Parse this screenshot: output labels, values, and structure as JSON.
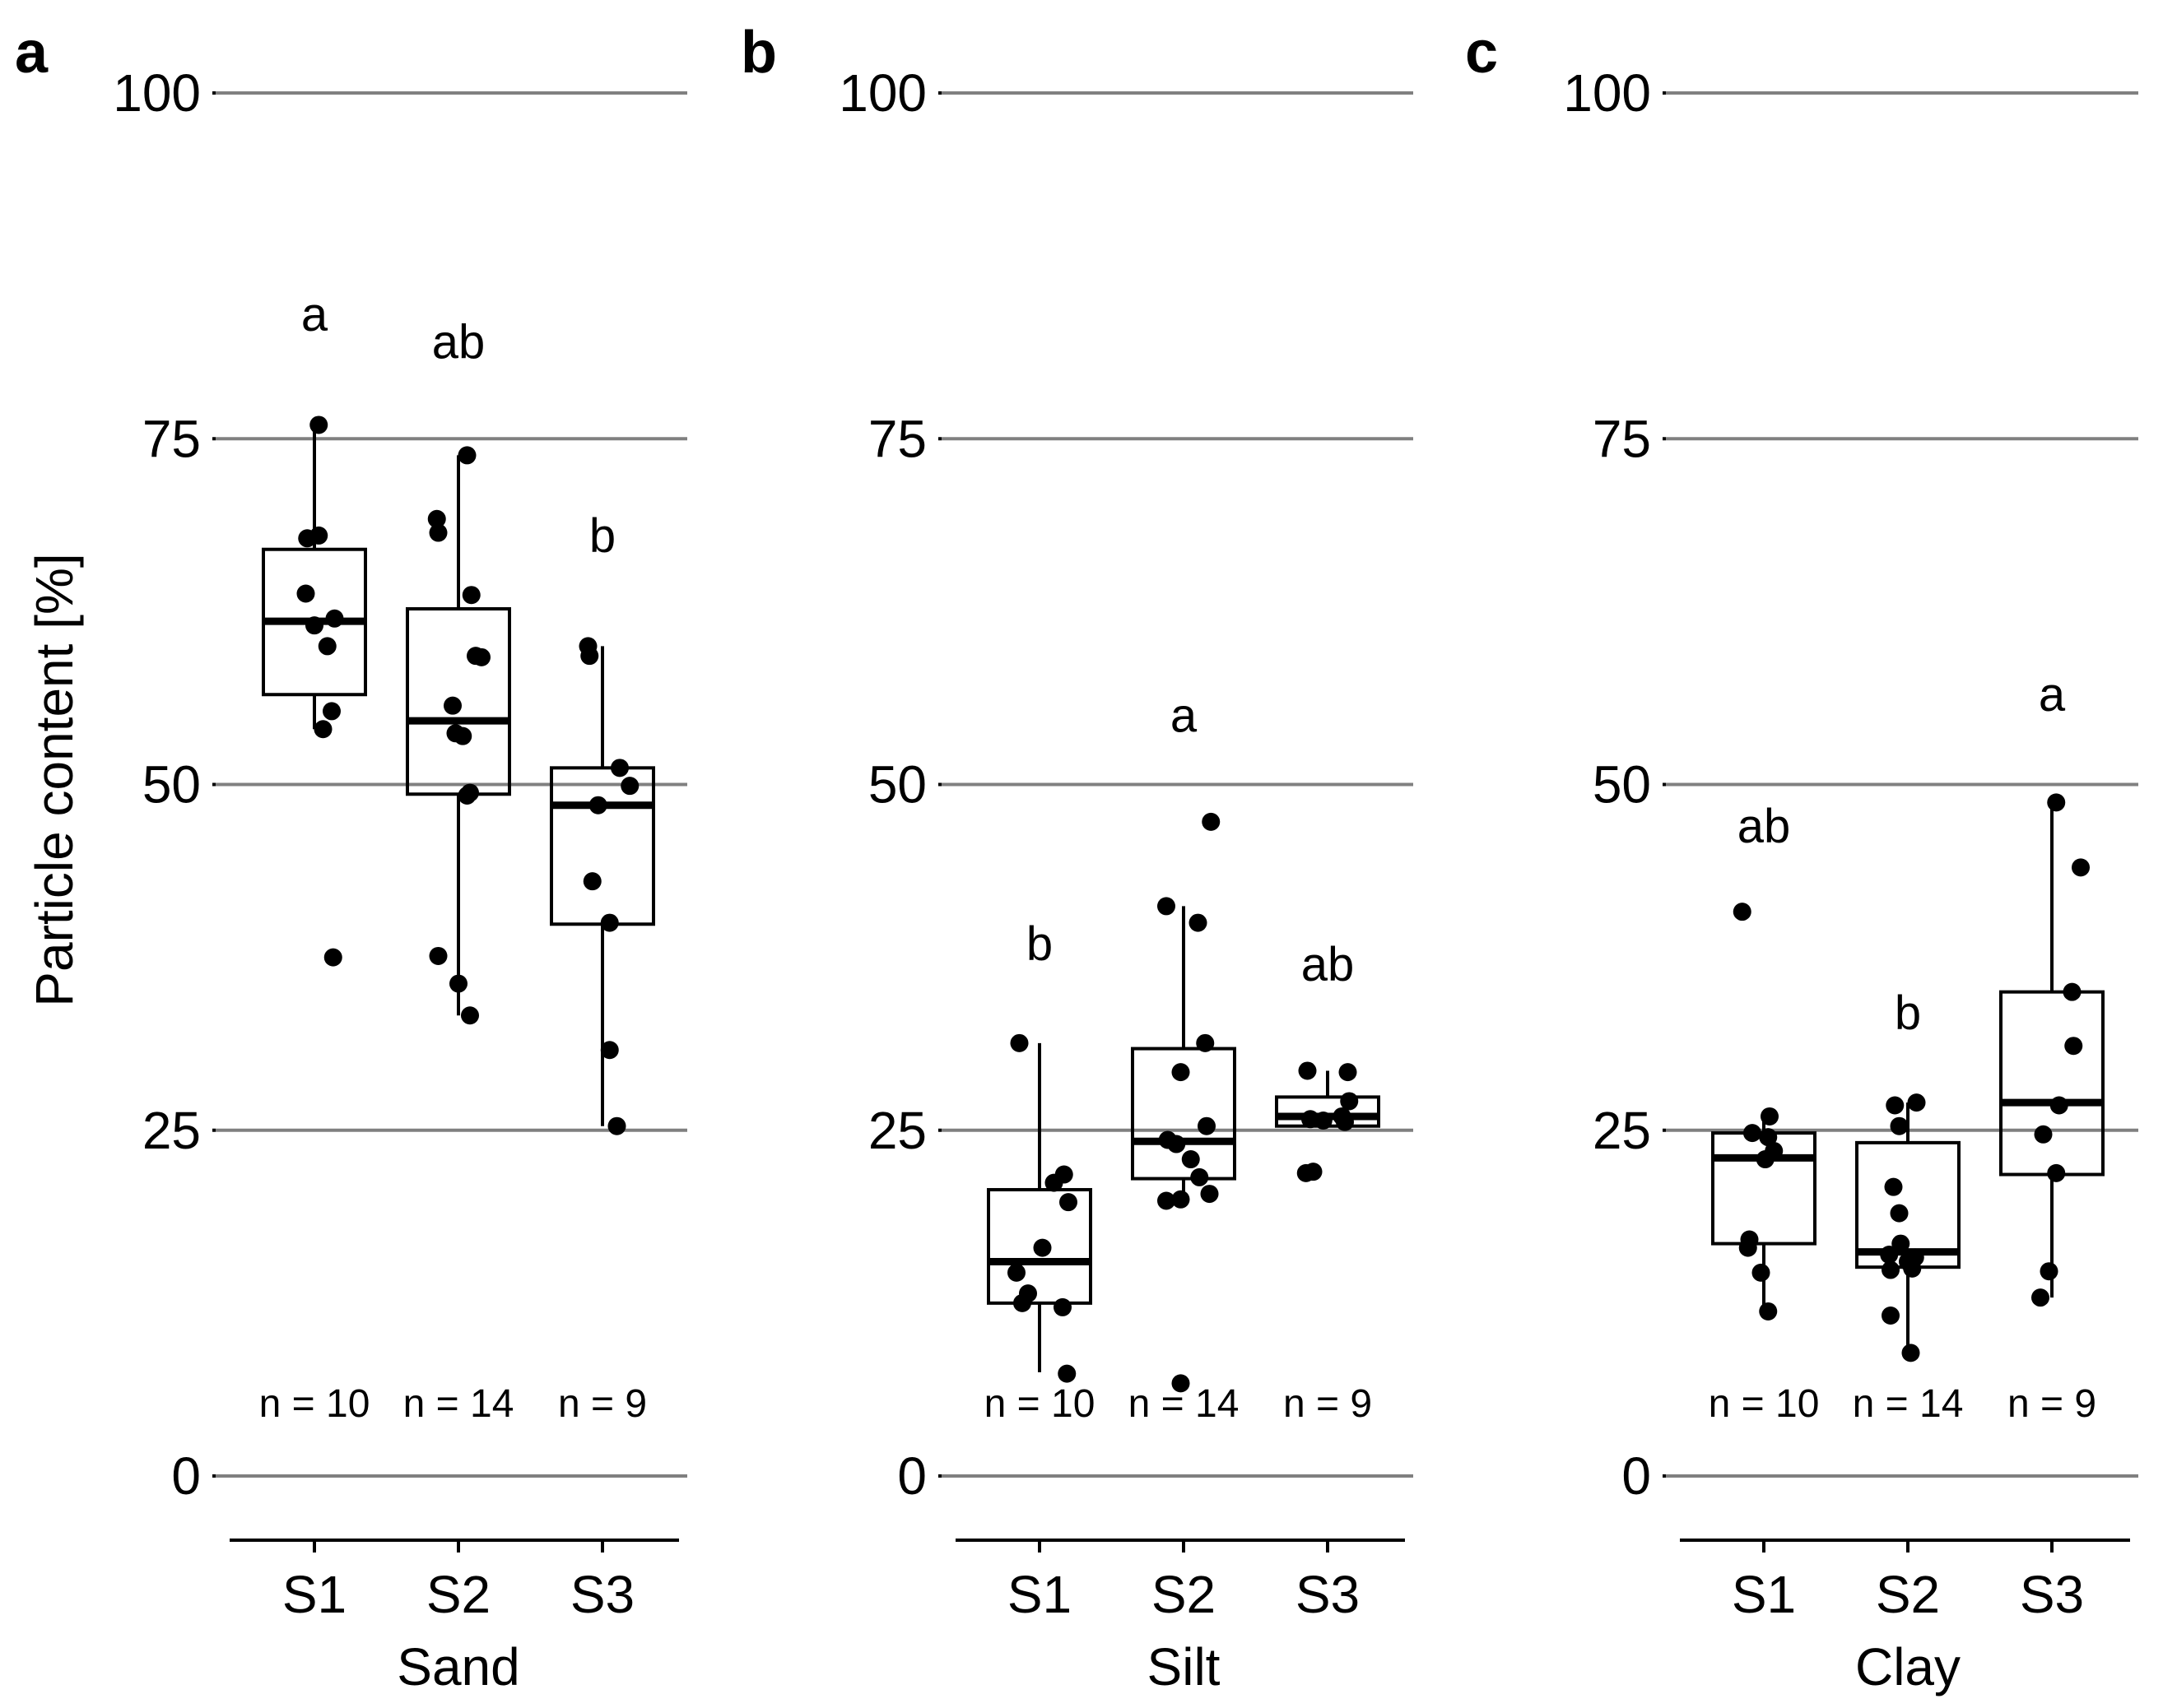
{
  "figure": {
    "y_axis_label": "Particle content [%]",
    "colors": {
      "grid": "#808080",
      "box": "#000000",
      "point": "#000000",
      "background": "#ffffff"
    }
  },
  "chart_data": [
    {
      "type": "box",
      "panel_label": "a",
      "xlabel": "Sand",
      "ylabel": "Particle content [%]",
      "ylim": [
        -5,
        100
      ],
      "yticks": [
        0,
        25,
        50,
        75,
        100
      ],
      "ytick_labels": [
        "0",
        "25",
        "50",
        "75",
        "100"
      ],
      "grid": "horizontal",
      "categories": [
        "S1",
        "S2",
        "S3"
      ],
      "groups": [
        {
          "name": "S1",
          "n_label": "n = 10",
          "sig": "a",
          "sig_y": 84,
          "q1": 56.5,
          "median": 61.8,
          "q3": 67.0,
          "whisker_low": 54.0,
          "whisker_high": 76.0,
          "points": [
            76.0,
            68.0,
            67.8,
            63.8,
            62.0,
            60.0,
            55.3,
            54.0,
            37.5,
            61.5
          ],
          "jitter": [
            0.03,
            0.03,
            -0.05,
            -0.06,
            0.14,
            0.09,
            0.12,
            0.06,
            0.13,
            0.0
          ]
        },
        {
          "name": "S2",
          "n_label": "n = 14",
          "sig": "ab",
          "sig_y": 82,
          "q1": 49.3,
          "median": 54.6,
          "q3": 62.7,
          "whisker_low": 33.3,
          "whisker_high": 73.8,
          "points": [
            73.8,
            69.2,
            68.2,
            63.7,
            59.3,
            59.2,
            55.7,
            53.7,
            53.5,
            49.4,
            49.2,
            37.6,
            35.6,
            33.3
          ],
          "jitter": [
            0.06,
            -0.15,
            -0.14,
            0.09,
            0.12,
            0.16,
            -0.04,
            -0.02,
            0.03,
            0.08,
            0.06,
            -0.14,
            0.0,
            0.08
          ]
        },
        {
          "name": "S3",
          "n_label": "n = 9",
          "sig": "b",
          "sig_y": 68,
          "q1": 39.9,
          "median": 48.5,
          "q3": 51.2,
          "whisker_low": 25.3,
          "whisker_high": 60.0,
          "points": [
            60.0,
            59.3,
            51.2,
            49.9,
            48.5,
            43.0,
            40.0,
            30.8,
            25.3
          ],
          "jitter": [
            -0.1,
            -0.09,
            0.12,
            0.19,
            -0.03,
            -0.07,
            0.05,
            0.05,
            0.1
          ]
        }
      ]
    },
    {
      "type": "box",
      "panel_label": "b",
      "xlabel": "Silt",
      "ylabel": "",
      "ylim": [
        -5,
        100
      ],
      "yticks": [
        0,
        25,
        50,
        75,
        100
      ],
      "ytick_labels": [
        "0",
        "25",
        "50",
        "75",
        "100"
      ],
      "grid": "horizontal",
      "categories": [
        "S1",
        "S2",
        "S3"
      ],
      "groups": [
        {
          "name": "S1",
          "n_label": "n = 10",
          "sig": "b",
          "sig_y": 38.5,
          "q1": 12.5,
          "median": 15.5,
          "q3": 20.7,
          "whisker_low": 7.5,
          "whisker_high": 31.3,
          "points": [
            31.3,
            21.8,
            21.2,
            19.8,
            16.5,
            14.7,
            12.5,
            12.2,
            7.4,
            13.2
          ],
          "jitter": [
            -0.14,
            0.17,
            0.1,
            0.2,
            0.02,
            -0.16,
            -0.12,
            0.16,
            0.19,
            -0.08
          ]
        },
        {
          "name": "S2",
          "n_label": "n = 14",
          "sig": "a",
          "sig_y": 55,
          "q1": 21.5,
          "median": 24.2,
          "q3": 30.9,
          "whisker_low": 19.9,
          "whisker_high": 41.2,
          "points": [
            47.3,
            41.2,
            40.0,
            31.3,
            29.2,
            25.3,
            24.3,
            24.0,
            22.9,
            21.6,
            20.4,
            20.0,
            19.9,
            6.7
          ],
          "jitter": [
            0.19,
            -0.12,
            0.1,
            0.15,
            -0.02,
            0.16,
            -0.11,
            -0.05,
            0.05,
            0.11,
            0.18,
            -0.02,
            -0.12,
            -0.02
          ]
        },
        {
          "name": "S3",
          "n_label": "n = 9",
          "sig": "ab",
          "sig_y": 37,
          "q1": 25.3,
          "median": 26.0,
          "q3": 27.4,
          "whisker_low": 25.3,
          "whisker_high": 29.3,
          "points": [
            29.3,
            27.1,
            26.0,
            25.8,
            25.7,
            25.6,
            22.0,
            21.9,
            29.2
          ],
          "jitter": [
            -0.14,
            0.15,
            0.1,
            -0.12,
            -0.03,
            0.12,
            -0.1,
            -0.15,
            0.14
          ]
        }
      ]
    },
    {
      "type": "box",
      "panel_label": "c",
      "xlabel": "Clay",
      "ylabel": "",
      "ylim": [
        -5,
        100
      ],
      "yticks": [
        0,
        25,
        50,
        75,
        100
      ],
      "ytick_labels": [
        "0",
        "25",
        "50",
        "75",
        "100"
      ],
      "grid": "horizontal",
      "categories": [
        "S1",
        "S2",
        "S3"
      ],
      "groups": [
        {
          "name": "S1",
          "n_label": "n = 10",
          "sig": "ab",
          "sig_y": 47,
          "q1": 16.8,
          "median": 23.0,
          "q3": 24.8,
          "whisker_low": 12.0,
          "whisker_high": 26.0,
          "points": [
            40.8,
            26.0,
            24.8,
            24.5,
            23.5,
            17.1,
            16.5,
            14.7,
            11.9,
            22.9
          ],
          "jitter": [
            -0.15,
            0.04,
            -0.08,
            0.03,
            0.07,
            -0.1,
            -0.11,
            -0.02,
            0.03,
            0.01
          ]
        },
        {
          "name": "S2",
          "n_label": "n = 14",
          "sig": "b",
          "sig_y": 33.5,
          "q1": 15.1,
          "median": 16.2,
          "q3": 24.1,
          "whisker_low": 9.0,
          "whisker_high": 27.0,
          "points": [
            26.8,
            27.0,
            25.3,
            20.9,
            19.0,
            16.8,
            16.0,
            15.7,
            15.5,
            15.0,
            14.9,
            11.6,
            8.9,
            15.8
          ],
          "jitter": [
            -0.09,
            0.06,
            -0.06,
            -0.1,
            -0.06,
            -0.05,
            -0.13,
            0.02,
            0.0,
            0.03,
            -0.12,
            -0.12,
            0.02,
            0.05
          ]
        },
        {
          "name": "S3",
          "n_label": "n = 9",
          "sig": "a",
          "sig_y": 56.5,
          "q1": 21.8,
          "median": 27.0,
          "q3": 35.0,
          "whisker_low": 12.9,
          "whisker_high": 48.7,
          "points": [
            48.7,
            44.0,
            35.0,
            31.1,
            26.8,
            24.7,
            21.9,
            14.8,
            12.9
          ],
          "jitter": [
            0.03,
            0.2,
            0.14,
            0.15,
            0.05,
            -0.06,
            0.03,
            -0.02,
            -0.08
          ]
        }
      ]
    }
  ]
}
